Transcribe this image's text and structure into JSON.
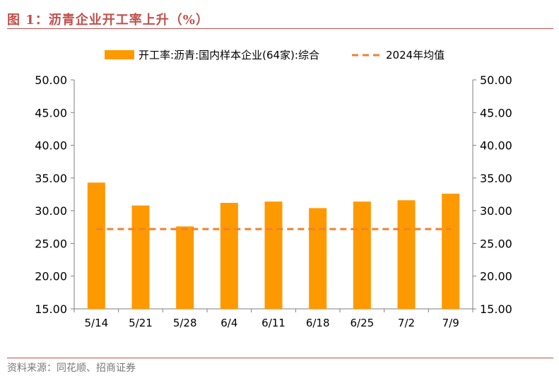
{
  "figure": {
    "title": "图 1：沥青企业开工率上升（%）",
    "source": "资料来源：同花顺、招商证券"
  },
  "colors": {
    "bar": "#ff9900",
    "avg_line": "#f08030",
    "accent": "#c0504d",
    "axis": "#7f7f7f",
    "text": "#000000"
  },
  "chart_data": {
    "type": "bar",
    "categories": [
      "5/14",
      "5/21",
      "5/28",
      "6/4",
      "6/11",
      "6/18",
      "6/25",
      "7/2",
      "7/9"
    ],
    "series": [
      {
        "name": "开工率:沥青:国内样本企业(64家):综合",
        "type": "bar",
        "values": [
          34.3,
          30.8,
          27.6,
          31.2,
          31.4,
          30.4,
          31.4,
          31.6,
          32.6
        ]
      },
      {
        "name": "2024年均值",
        "type": "line",
        "style": "dashed",
        "values": [
          27.2,
          27.2,
          27.2,
          27.2,
          27.2,
          27.2,
          27.2,
          27.2,
          27.2
        ]
      }
    ],
    "ylim": [
      15,
      50
    ],
    "yticks": [
      "15.00",
      "20.00",
      "25.00",
      "30.00",
      "35.00",
      "40.00",
      "45.00",
      "50.00"
    ],
    "y_right_ticks": [
      "15.00",
      "20.00",
      "25.00",
      "30.00",
      "35.00",
      "40.00",
      "45.00",
      "50.00"
    ],
    "legend_position": "top",
    "grid": false
  }
}
